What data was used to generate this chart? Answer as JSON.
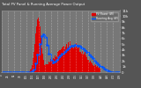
{
  "title": "Total PV Panel & Running Average Power Output",
  "bg_color": "#555555",
  "plot_bg": "#777777",
  "grid_color": "#ffffff",
  "bar_color": "#dd0000",
  "avg_color": "#0055ff",
  "title_color": "#ffffff",
  "tick_color": "#ffffff",
  "ylim": [
    0,
    11000
  ],
  "num_points": 500,
  "legend_labels": [
    "PV Power (W)",
    "Running Avg (W)"
  ],
  "legend_colors": [
    "#dd0000",
    "#0055ff"
  ]
}
